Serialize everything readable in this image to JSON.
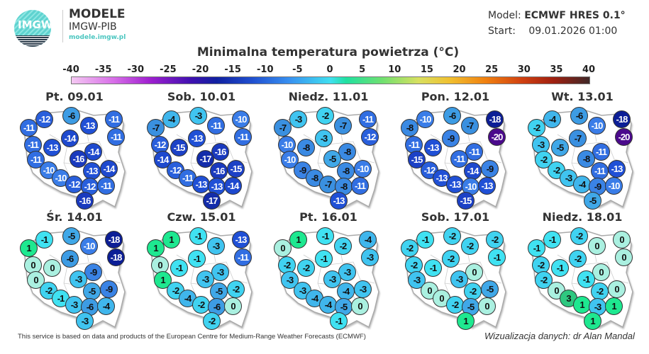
{
  "header": {
    "logo_text": "IMGW",
    "brand_title": "MODELE",
    "brand_subtitle": "IMGW-PIB",
    "brand_url": "modele.imgw.pl",
    "model_label": "Model:",
    "model_value": "ECMWF HRES 0.1°",
    "start_label": "Start:",
    "start_value": "09.01.2026 01:00"
  },
  "title": "Minimalna temperatura powietrza (°C)",
  "legend": {
    "ticks": [
      "-40",
      "-35",
      "-30",
      "-25",
      "-20",
      "-15",
      "-10",
      "-5",
      "0",
      "5",
      "10",
      "15",
      "20",
      "25",
      "30",
      "35",
      "40"
    ],
    "range": [
      -40,
      40
    ]
  },
  "maps": [
    {
      "label": "Pt. 09.01",
      "values": [
        -12,
        -11,
        -6,
        -13,
        -11,
        -11,
        -14,
        -11,
        -13,
        -14,
        -11,
        -16,
        -10,
        -13,
        -14,
        -10,
        -12,
        -12,
        -11,
        -16
      ]
    },
    {
      "label": "Sob. 10.01",
      "values": [
        -4,
        -7,
        -3,
        -11,
        -10,
        -11,
        -13,
        -12,
        -15,
        -16,
        -14,
        -17,
        -12,
        -16,
        -15,
        -11,
        -13,
        -13,
        -14,
        -17
      ]
    },
    {
      "label": "Niedz. 11.01",
      "values": [
        -3,
        -7,
        -2,
        -7,
        -11,
        -12,
        -3,
        -10,
        -8,
        -8,
        -10,
        -5,
        -9,
        -8,
        -10,
        -8,
        -7,
        -8,
        -11,
        -13
      ]
    },
    {
      "label": "Pon. 12.01",
      "values": [
        -10,
        -8,
        -6,
        -7,
        -18,
        -20,
        -9,
        -11,
        -13,
        -11,
        -15,
        -11,
        -12,
        -14,
        -9,
        -13,
        -13,
        -10,
        -13,
        -15
      ]
    },
    {
      "label": "Wt. 13.01",
      "values": [
        -4,
        -2,
        -6,
        -10,
        -18,
        -20,
        -7,
        -3,
        -5,
        -11,
        -2,
        -8,
        -2,
        -11,
        -13,
        -3,
        -4,
        -9,
        -10,
        -5
      ]
    },
    {
      "label": "Śr. 14.01",
      "values": [
        -1,
        1,
        -5,
        -10,
        -18,
        -18,
        -6,
        0,
        0,
        -9,
        0,
        -3,
        -2,
        -5,
        -9,
        -1,
        -3,
        -6,
        -4,
        -3
      ]
    },
    {
      "label": "Czw. 15.01",
      "values": [
        1,
        1,
        -1,
        -3,
        -13,
        -11,
        -1,
        0,
        -1,
        -3,
        1,
        -3,
        -2,
        -5,
        -2,
        -4,
        -2,
        -6,
        0,
        -2
      ]
    },
    {
      "label": "Pt. 16.01",
      "values": [
        1,
        0,
        -1,
        -2,
        -4,
        -3,
        -1,
        -2,
        -2,
        -3,
        -3,
        -3,
        -3,
        -4,
        -3,
        -4,
        -4,
        -5,
        0,
        -1
      ]
    },
    {
      "label": "Sob. 17.01",
      "values": [
        -1,
        -2,
        -2,
        -2,
        -2,
        -1,
        -2,
        -2,
        -1,
        0,
        -3,
        -3,
        0,
        -2,
        -5,
        0,
        -2,
        -5,
        0,
        1
      ]
    },
    {
      "label": "Niedz. 18.01",
      "values": [
        -1,
        -1,
        -2,
        0,
        0,
        0,
        -2,
        -2,
        -1,
        0,
        -2,
        -1,
        0,
        -2,
        0,
        3,
        1,
        -3,
        1,
        1
      ]
    }
  ],
  "footer": {
    "source": "This service is based on data and products of the European Centre for Medium-Range Weather Forecasts (ECMWF)",
    "credit": "Wizualizacja danych: dr Alan Mandal"
  }
}
